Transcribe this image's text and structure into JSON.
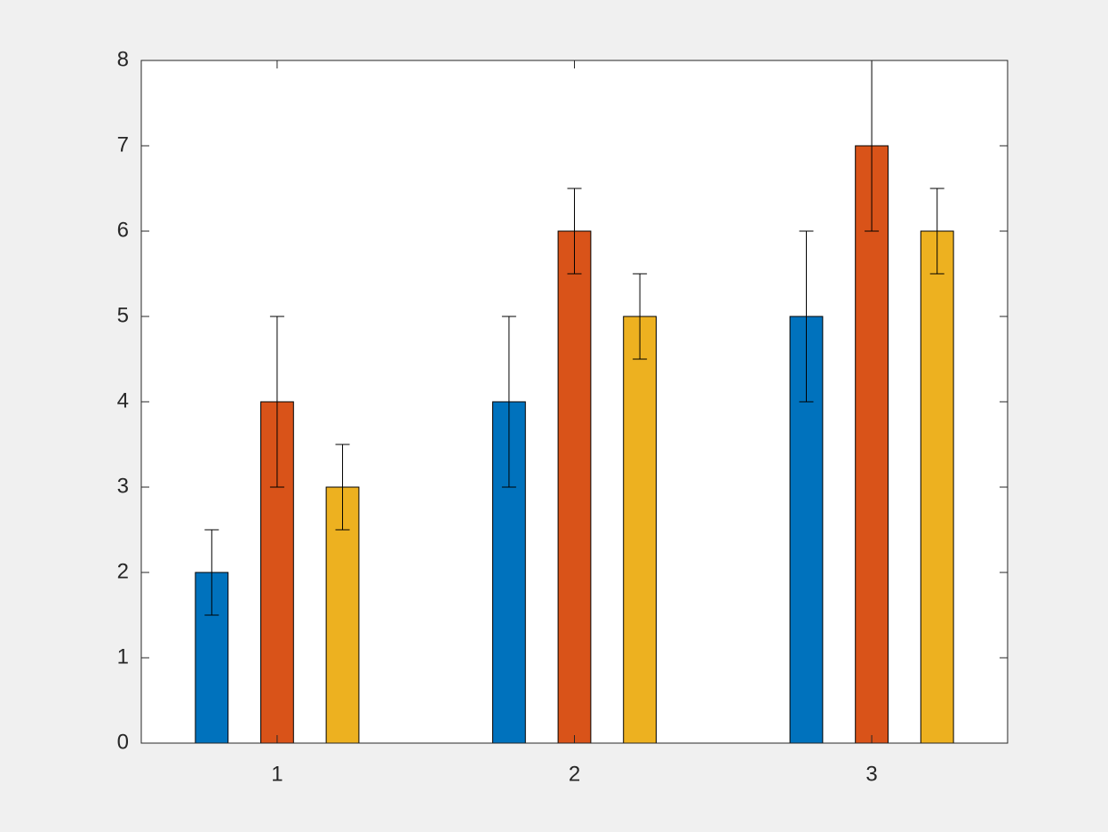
{
  "chart_data": {
    "type": "bar",
    "x": [
      1,
      2,
      3
    ],
    "series": [
      {
        "color": "#0072bd",
        "values": [
          2,
          4,
          5
        ],
        "errors": [
          0.5,
          1,
          1
        ]
      },
      {
        "color": "#d95319",
        "values": [
          4,
          6,
          7
        ],
        "errors": [
          1,
          0.5,
          1
        ]
      },
      {
        "color": "#edb120",
        "values": [
          3,
          5,
          6
        ],
        "errors": [
          0.5,
          0.5,
          0.5
        ]
      }
    ],
    "xlim": [
      0.543,
      3.457
    ],
    "xticks": [
      1,
      2,
      3
    ],
    "ylim": [
      0,
      8
    ],
    "yticks": [
      0,
      1,
      2,
      3,
      4,
      5,
      6,
      7,
      8
    ],
    "grid": false
  }
}
